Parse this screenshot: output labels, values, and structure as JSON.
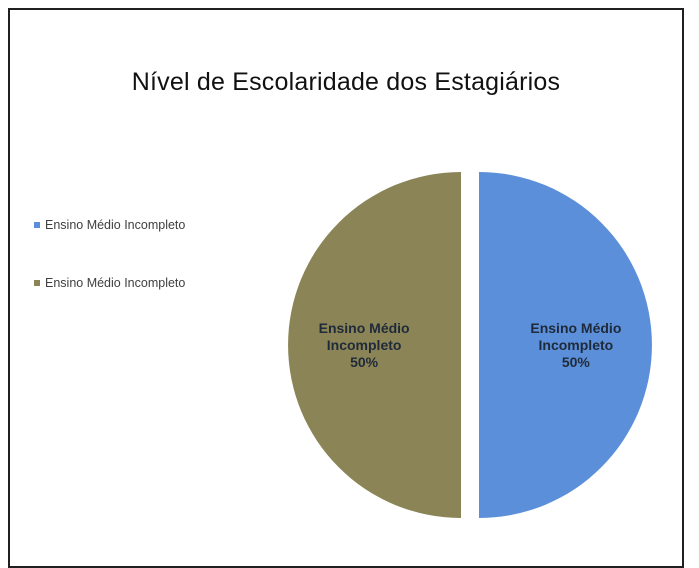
{
  "chart_data": {
    "type": "pie",
    "title": "Nível de Escolaridade dos Estagiários",
    "legend_position": "left",
    "slices": [
      {
        "label": "Ensino Médio Incompleto",
        "value": 50,
        "percent_label": "50%",
        "color": "#5b8fd9"
      },
      {
        "label": "Ensino Médio Incompleto",
        "value": 50,
        "percent_label": "50%",
        "color": "#8b8456"
      }
    ],
    "legend": [
      {
        "label": "Ensino Médio Incompleto",
        "color": "#5b8fd9"
      },
      {
        "label": "Ensino Médio Incompleto",
        "color": "#8b8456"
      }
    ]
  }
}
